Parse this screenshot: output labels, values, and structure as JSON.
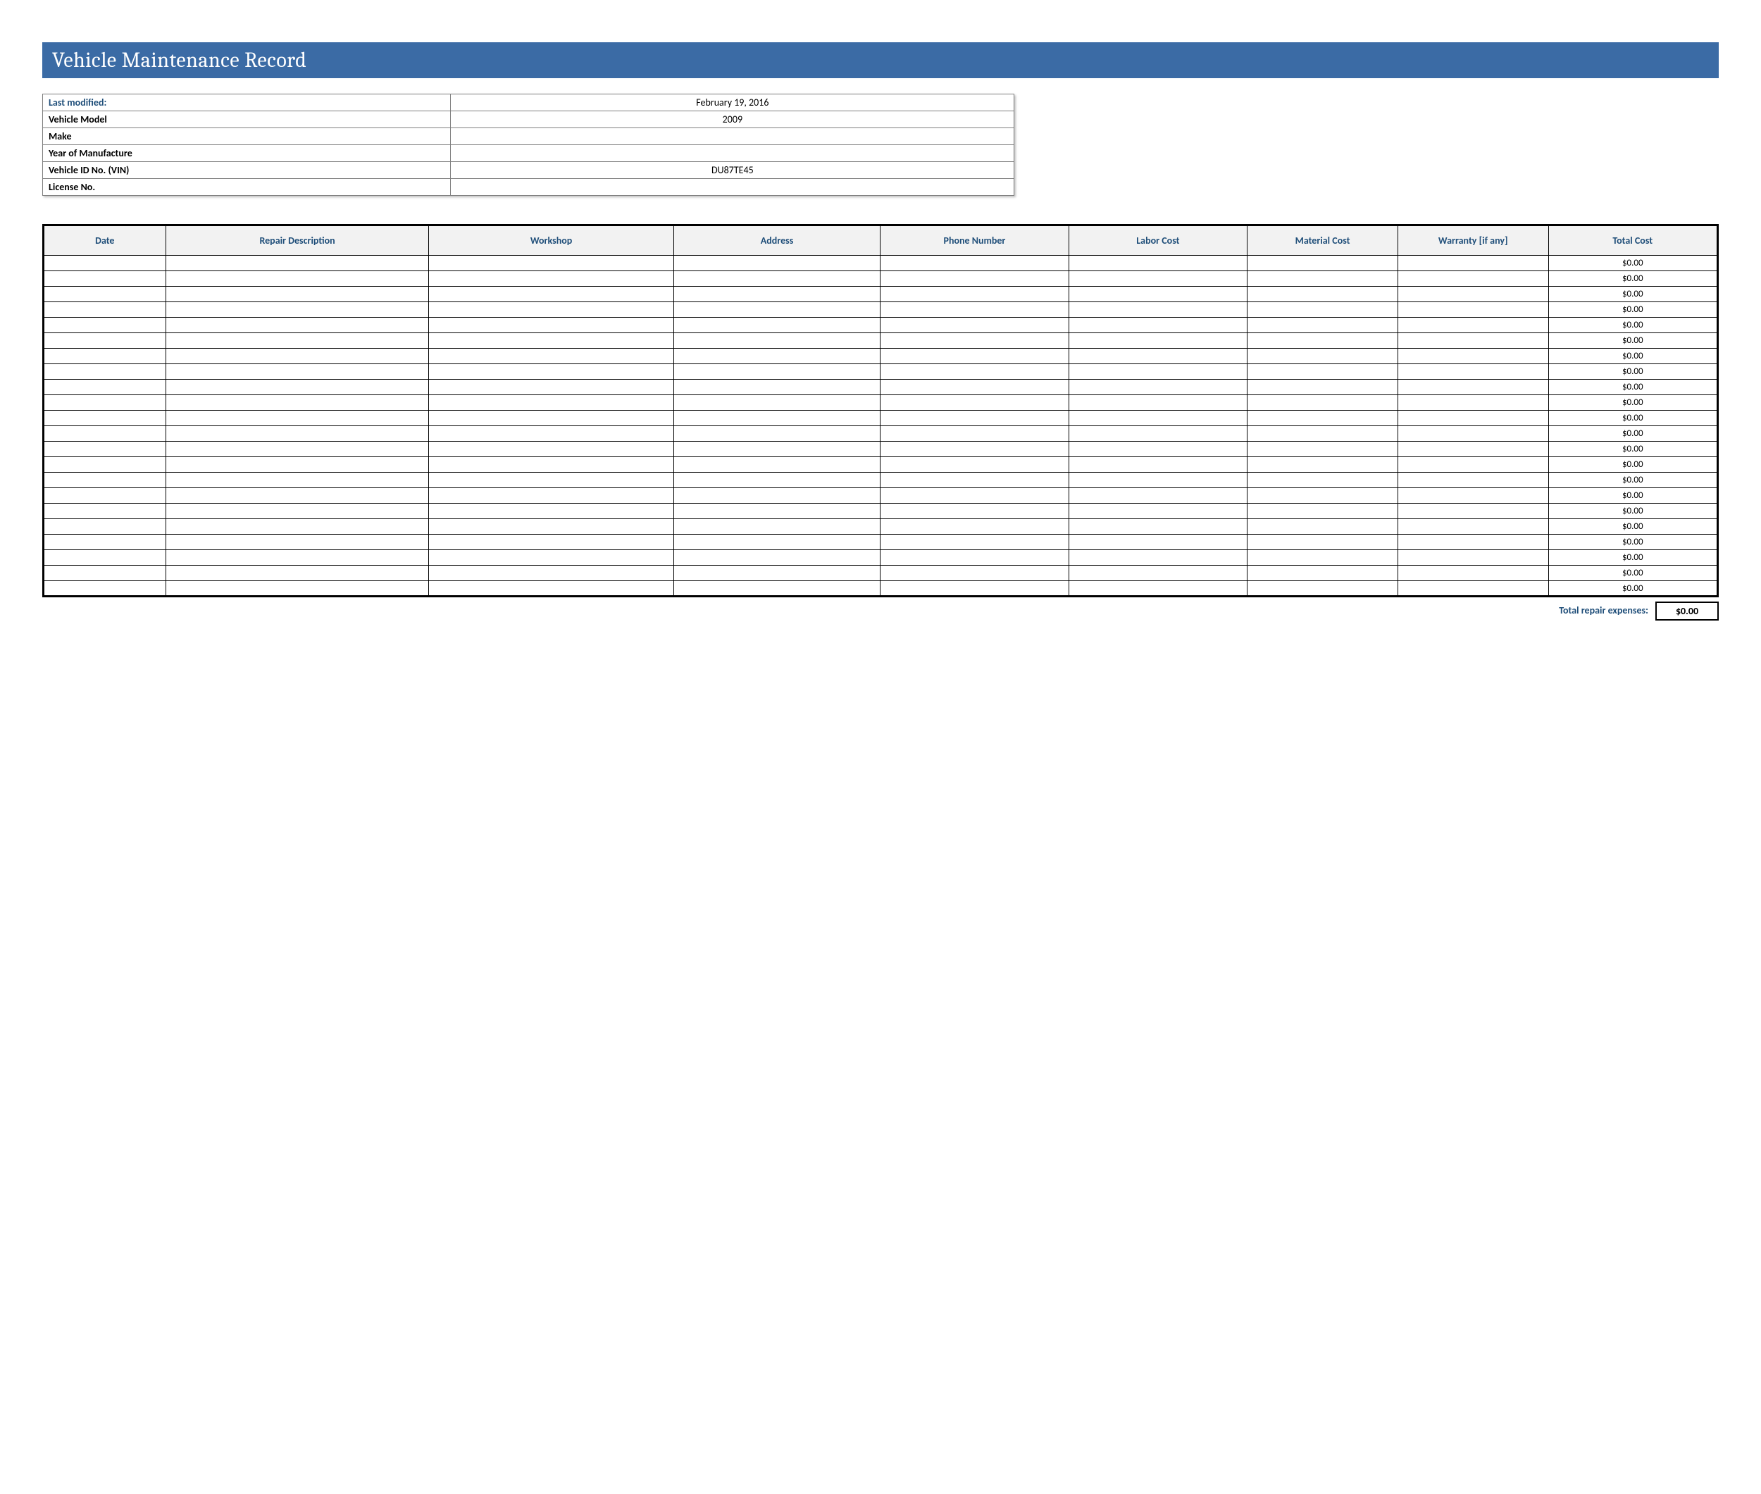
{
  "title": "Vehicle Maintenance  Record",
  "info": {
    "rows": [
      {
        "label": "Last modified:",
        "value": "February 19, 2016"
      },
      {
        "label": "Vehicle Model",
        "value": "2009"
      },
      {
        "label": "Make",
        "value": ""
      },
      {
        "label": "Year of Manufacture",
        "value": ""
      },
      {
        "label": "Vehicle ID No. (VIN)",
        "value": "DU87TE45"
      },
      {
        "label": "License No.",
        "value": ""
      }
    ]
  },
  "main": {
    "columns": [
      "Date",
      "Repair Description",
      "Workshop",
      "Address",
      "Phone Number",
      "Labor Cost",
      "Material Cost",
      "Warranty [if any]",
      "Total Cost"
    ],
    "row_count": 22,
    "default_total": "$0.00"
  },
  "footer": {
    "label": "Total repair expenses:",
    "value": "$0.00"
  },
  "colors": {
    "header_bg": "#3b6ba5",
    "header_text": "#ffffff",
    "accent_text": "#1f4e79",
    "table_header_bg": "#f2f2f2",
    "border": "#000000",
    "info_border": "#7f7f7f"
  }
}
